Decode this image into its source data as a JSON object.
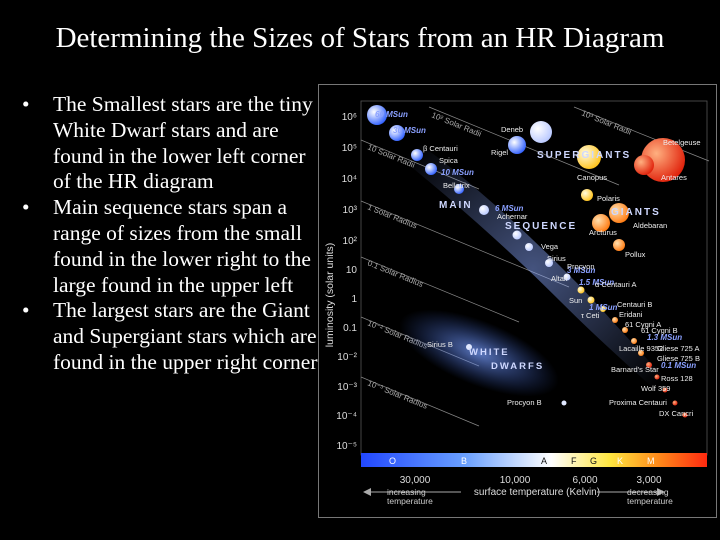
{
  "slide": {
    "title": "Determining the Sizes of Stars from an HR Diagram",
    "bullet_glyph": "•",
    "bullets": [
      "The Smallest stars are the tiny White Dwarf stars and are found in the lower left corner of the HR diagram",
      "Main sequence stars span a range of sizes from the small found in the lower right to the large found in the upper left",
      "The largest stars are the Giant and Supergiant stars which are found in the upper right corner"
    ]
  },
  "diagram": {
    "y_axis_label": "luminosity (solar units)",
    "y_ticks": [
      "10⁶",
      "10⁵",
      "10⁴",
      "10³",
      "10²",
      "10",
      "1",
      "0.1",
      "10⁻²",
      "10⁻³",
      "10⁻⁴",
      "10⁻⁵"
    ],
    "spectral_classes": [
      "O",
      "B",
      "A",
      "F",
      "G",
      "K",
      "M"
    ],
    "temp_ticks": [
      "30,000",
      "10,000",
      "6,000",
      "3,000"
    ],
    "x_axis_label": "surface temperature (Kelvin)",
    "x_left_note": [
      "increasing",
      "temperature"
    ],
    "x_right_note": [
      "decreasing",
      "temperature"
    ],
    "radius_lines": [
      "10² Solar Radii",
      "10³ Solar Radii",
      "10 Solar Radii",
      "1 Solar Radius",
      "0.1 Solar Radius",
      "10⁻² Solar Radius",
      "10⁻³ Solar Radius"
    ],
    "regions": {
      "supergiants": "SUPERGIANTS",
      "giants": "GIANTS",
      "main": "MAIN",
      "sequence": "SEQUENCE",
      "white": "WHITE",
      "dwarfs": "DWARFS"
    },
    "mass_labels": [
      "60 MSun",
      "30 MSun",
      "10 MSun",
      "6 MSun",
      "3 MSun",
      "1.5 MSun",
      "1 MSun",
      "1.3 MSun",
      "0.1 MSun"
    ],
    "stars": [
      "Deneb",
      "Betelgeuse",
      "Rigel",
      "β Centauri",
      "Spica",
      "Bellatrix",
      "Canopus",
      "Antares",
      "Polaris",
      "Achernar",
      "Aldebaran",
      "Arcturus",
      "Vega",
      "Sirius",
      "Pollux",
      "Procyon",
      "Altair",
      "α Centauri A",
      "Sun",
      "Centauri B",
      "Eridani",
      "τ Ceti",
      "61 Cygni A",
      "61 Cygni B",
      "Sirius B",
      "Lacaille 9352",
      "Gliese 725 A",
      "Gliese 725 B",
      "Barnard's Star",
      "Ross 128",
      "Wolf 359",
      "Procyon B",
      "Proxima Centauri",
      "DX Cancri"
    ],
    "colors": {
      "hot": "#3b6cff",
      "mid": "#ffffff",
      "warm": "#ffd84a",
      "cool": "#ff3a1a"
    }
  }
}
